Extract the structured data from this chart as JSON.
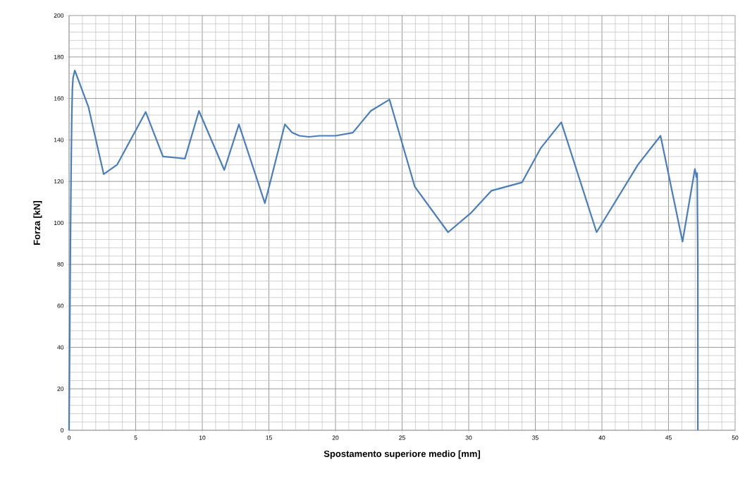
{
  "chart_data": {
    "type": "line",
    "xlabel": "Spostamento superiore medio [mm]",
    "ylabel": "Forza [kN]",
    "xlim": [
      0,
      50
    ],
    "ylim": [
      0,
      200
    ],
    "xticks": [
      0,
      5,
      10,
      15,
      20,
      25,
      30,
      35,
      40,
      45,
      50
    ],
    "yticks": [
      0,
      20,
      40,
      60,
      80,
      100,
      120,
      140,
      160,
      180,
      200
    ],
    "grid": true,
    "series": [
      {
        "color": "#4a7ebb",
        "x": [
          0,
          0.05,
          0.1,
          0.15,
          0.2,
          0.25,
          0.3,
          0.43,
          1.45,
          2.6,
          3.6,
          5.75,
          7.05,
          8.7,
          9.75,
          11.65,
          12.75,
          14.7,
          16.2,
          16.75,
          17.3,
          18.0,
          18.8,
          20.0,
          21.3,
          22.65,
          24.05,
          25.95,
          28.45,
          30.2,
          31.7,
          34.0,
          35.4,
          36.95,
          39.6,
          42.7,
          44.4,
          46.05,
          46.98,
          47.1,
          47.15,
          47.2,
          47.2
        ],
        "values": [
          0,
          46,
          88,
          123,
          150,
          165,
          170,
          173.5,
          156,
          123.5,
          128,
          153.5,
          132,
          131,
          154,
          125.5,
          147.5,
          109.5,
          147.5,
          143.5,
          142,
          141.5,
          142,
          142,
          143.5,
          154,
          159.5,
          117.5,
          95.5,
          105,
          115.5,
          119.5,
          136,
          148.5,
          95.5,
          128,
          142,
          91,
          126,
          122,
          124,
          80,
          0
        ]
      }
    ]
  }
}
